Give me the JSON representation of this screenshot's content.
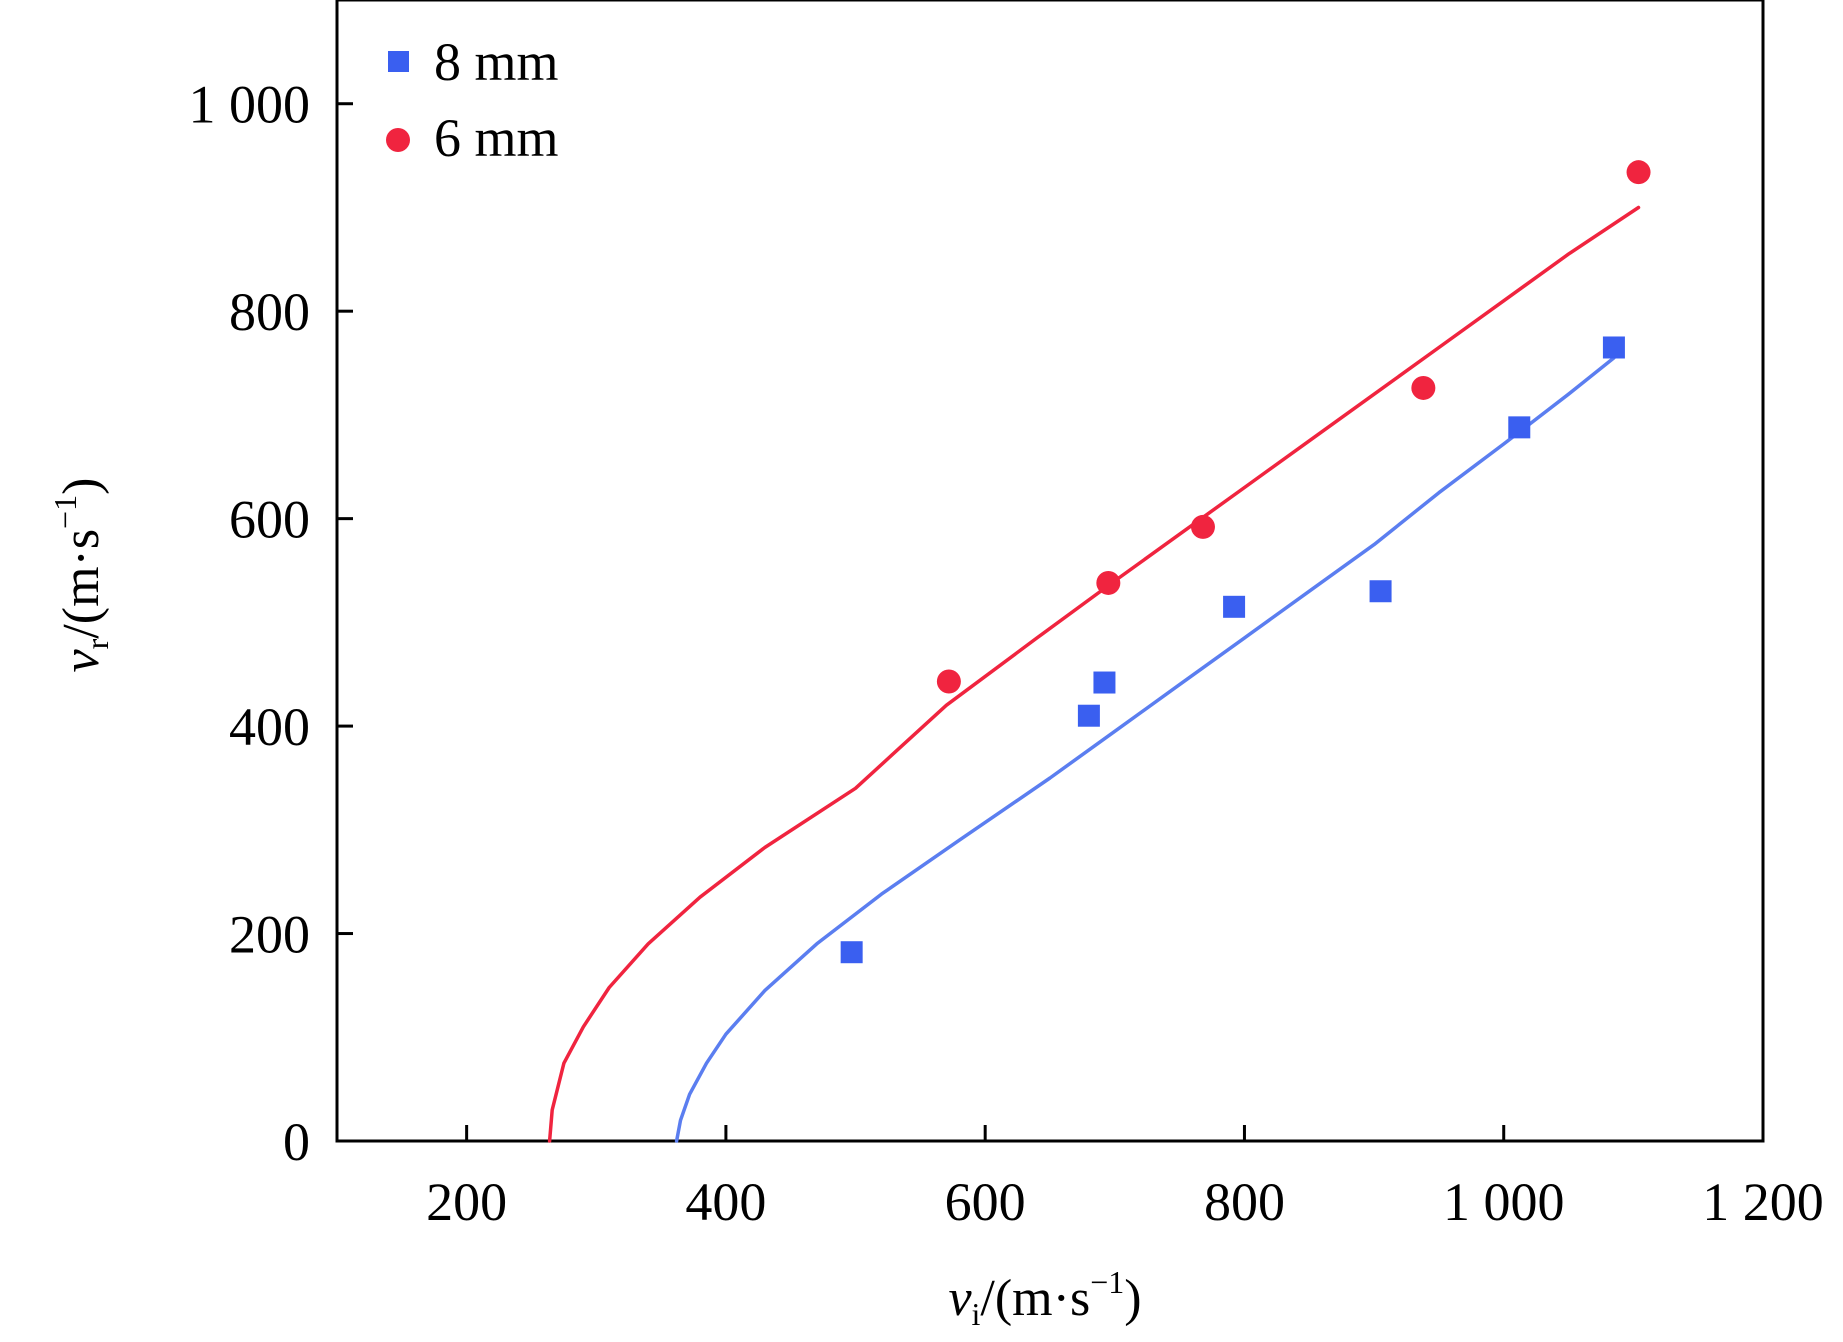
{
  "chart_data": {
    "type": "scatter",
    "title": "",
    "xlabel": {
      "var": "v",
      "sub": "i",
      "unit_open": "/(m·s",
      "exp": "−1",
      "unit_close": ")"
    },
    "ylabel": {
      "var": "v",
      "sub": "r",
      "unit_open": "/(m·s",
      "exp": "−1",
      "unit_close": ")"
    },
    "xlim": [
      100,
      1200
    ],
    "ylim": [
      0,
      1100
    ],
    "xticks": [
      200,
      400,
      600,
      800,
      1000,
      1200
    ],
    "xtick_labels": [
      "200",
      "400",
      "600",
      "800",
      "1 000",
      "1 200"
    ],
    "yticks": [
      0,
      200,
      400,
      600,
      800,
      1000
    ],
    "ytick_labels": [
      "0",
      "200",
      "400",
      "600",
      "800",
      "1 000"
    ],
    "legend_position": "top-left",
    "grid": false,
    "series": [
      {
        "name": "8 mm",
        "marker": "square",
        "color": "#3a5ff0",
        "line_color": "#5b7ef0",
        "points": [
          {
            "x": 497,
            "y": 182
          },
          {
            "x": 680,
            "y": 410
          },
          {
            "x": 692,
            "y": 442
          },
          {
            "x": 792,
            "y": 515
          },
          {
            "x": 905,
            "y": 530
          },
          {
            "x": 1012,
            "y": 688
          },
          {
            "x": 1085,
            "y": 765
          }
        ],
        "fit_curve": [
          {
            "x": 362,
            "y": 0
          },
          {
            "x": 365,
            "y": 20
          },
          {
            "x": 372,
            "y": 45
          },
          {
            "x": 385,
            "y": 75
          },
          {
            "x": 400,
            "y": 103
          },
          {
            "x": 430,
            "y": 145
          },
          {
            "x": 470,
            "y": 190
          },
          {
            "x": 520,
            "y": 238
          },
          {
            "x": 580,
            "y": 290
          },
          {
            "x": 650,
            "y": 350
          },
          {
            "x": 700,
            "y": 395
          },
          {
            "x": 750,
            "y": 440
          },
          {
            "x": 800,
            "y": 485
          },
          {
            "x": 850,
            "y": 530
          },
          {
            "x": 900,
            "y": 575
          },
          {
            "x": 950,
            "y": 625
          },
          {
            "x": 1000,
            "y": 672
          },
          {
            "x": 1050,
            "y": 720
          },
          {
            "x": 1085,
            "y": 755
          }
        ]
      },
      {
        "name": "6 mm",
        "marker": "circle",
        "color": "#f0243f",
        "line_color": "#f0243f",
        "points": [
          {
            "x": 572,
            "y": 443
          },
          {
            "x": 695,
            "y": 538
          },
          {
            "x": 768,
            "y": 592
          },
          {
            "x": 938,
            "y": 726
          },
          {
            "x": 1104,
            "y": 934
          }
        ],
        "fit_curve": [
          {
            "x": 264,
            "y": 0
          },
          {
            "x": 266,
            "y": 30
          },
          {
            "x": 275,
            "y": 75
          },
          {
            "x": 290,
            "y": 110
          },
          {
            "x": 310,
            "y": 148
          },
          {
            "x": 340,
            "y": 190
          },
          {
            "x": 380,
            "y": 235
          },
          {
            "x": 430,
            "y": 283
          },
          {
            "x": 500,
            "y": 340
          },
          {
            "x": 570,
            "y": 420
          },
          {
            "x": 640,
            "y": 485
          },
          {
            "x": 700,
            "y": 540
          },
          {
            "x": 750,
            "y": 585
          },
          {
            "x": 800,
            "y": 630
          },
          {
            "x": 850,
            "y": 675
          },
          {
            "x": 900,
            "y": 720
          },
          {
            "x": 950,
            "y": 765
          },
          {
            "x": 1000,
            "y": 810
          },
          {
            "x": 1050,
            "y": 855
          },
          {
            "x": 1104,
            "y": 900
          }
        ]
      }
    ]
  }
}
